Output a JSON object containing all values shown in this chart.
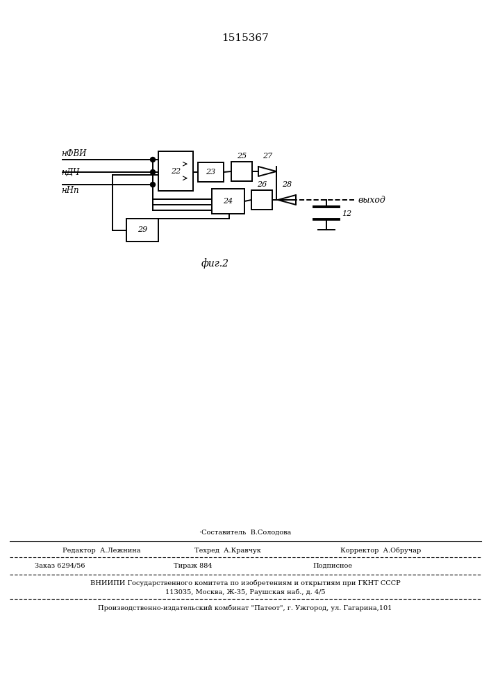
{
  "title": "1515367",
  "bg_color": "#ffffff",
  "line_color": "#000000",
  "lw": 1.4,
  "input_labels": [
    "нФВИ",
    "нДЧ",
    "нНп"
  ],
  "output_label": "выход",
  "fig_caption": "фиг.2",
  "footer_compositor": "·Составитель  В.Солодова",
  "footer_editor": "Редактор  А.Лежнина",
  "footer_tech": "Техред  А.Кравчук",
  "footer_corrector": "Корректор  А.Обручар",
  "footer_order": "Заказ 6294/56",
  "footer_tirazh": "Тираж 884",
  "footer_podp": "Подписное",
  "footer_vniip1": "ВНИИПИ Государственного комитета по изобретениям и открытиям при ГКНТ СССР",
  "footer_vniip2": "113035, Москва, Ж-35, Раушская наб., д. 4/5",
  "footer_patent": "Производственно-издательский комбинат \"Патеот\", г. Ужгород, ул. Гагарина,101"
}
